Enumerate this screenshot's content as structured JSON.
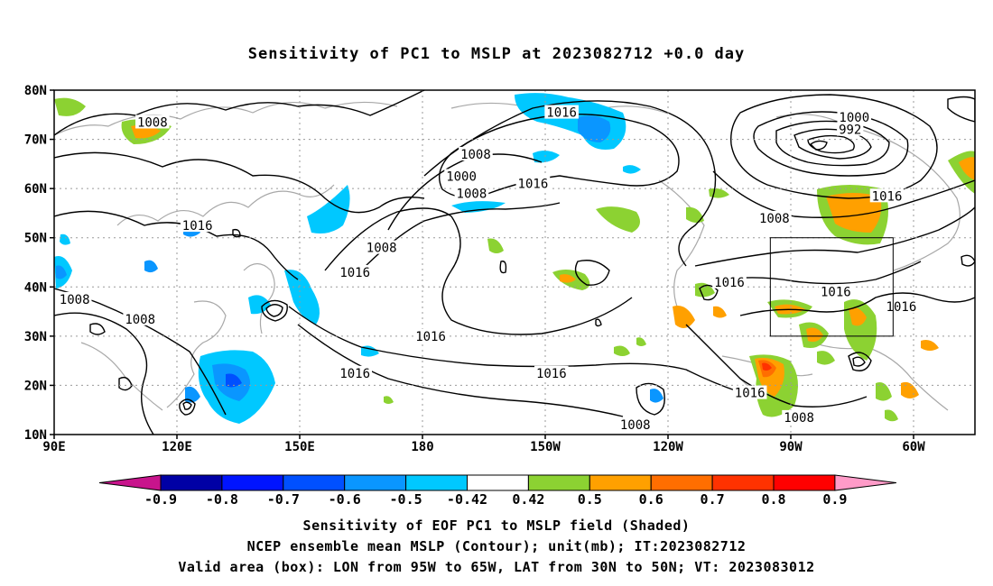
{
  "title": "Sensitivity of PC1 to MSLP at 2023082712 +0.0 day",
  "map": {
    "lat_labels": [
      "80N",
      "70N",
      "60N",
      "50N",
      "40N",
      "30N",
      "20N",
      "10N"
    ],
    "lon_labels": [
      "90E",
      "120E",
      "150E",
      "180",
      "150W",
      "120W",
      "90W",
      "60W"
    ],
    "contour_labels": [
      {
        "text": "1008",
        "lon": 114,
        "lat": 73.5
      },
      {
        "text": "1016",
        "lon": 125,
        "lat": 52.5
      },
      {
        "text": "1008",
        "lon": 95,
        "lat": 37.5
      },
      {
        "text": "1008",
        "lon": 111,
        "lat": 33.5
      },
      {
        "text": "1008",
        "lon": -167,
        "lat": 67
      },
      {
        "text": "1016",
        "lon": -146,
        "lat": 75.5
      },
      {
        "text": "1000",
        "lon": -170.5,
        "lat": 62.5
      },
      {
        "text": "1008",
        "lon": -168,
        "lat": 59
      },
      {
        "text": "1016",
        "lon": -153,
        "lat": 61
      },
      {
        "text": "1008",
        "lon": 170,
        "lat": 48
      },
      {
        "text": "1016",
        "lon": 163.5,
        "lat": 43
      },
      {
        "text": "1016",
        "lon": -178,
        "lat": 30
      },
      {
        "text": "1016",
        "lon": 163.5,
        "lat": 22.5
      },
      {
        "text": "1016",
        "lon": -148.5,
        "lat": 22.5
      },
      {
        "text": "1008",
        "lon": -128,
        "lat": 12
      },
      {
        "text": "1016",
        "lon": -105,
        "lat": 41
      },
      {
        "text": "1016",
        "lon": -100,
        "lat": 18.5
      },
      {
        "text": "1008",
        "lon": -94,
        "lat": 54
      },
      {
        "text": "1000",
        "lon": -74.5,
        "lat": 74.5
      },
      {
        "text": "992",
        "lon": -75.5,
        "lat": 72
      },
      {
        "text": "1016",
        "lon": -66.5,
        "lat": 58.5
      },
      {
        "text": "1016",
        "lon": -79,
        "lat": 39
      },
      {
        "text": "1016",
        "lon": -63,
        "lat": 36
      },
      {
        "text": "1008",
        "lon": -88,
        "lat": 13.5
      }
    ],
    "valid_box": {
      "lon_min": -95,
      "lon_max": -65,
      "lat_min": 30,
      "lat_max": 50
    }
  },
  "colorbar": {
    "labels": [
      "-0.9",
      "-0.8",
      "-0.7",
      "-0.6",
      "-0.5",
      "-0.42",
      "0.42",
      "0.5",
      "0.6",
      "0.7",
      "0.8",
      "0.9"
    ],
    "colors": [
      "#0000a5",
      "#0014ff",
      "#0050ff",
      "#0a96ff",
      "#00c8ff",
      "#ffffff",
      "#8cd232",
      "#ffa000",
      "#ff6e00",
      "#ff3200",
      "#ff0000"
    ],
    "low_end_color": "#c8148c",
    "high_end_color": "#ff9bc8"
  },
  "captions": [
    "Sensitivity of EOF PC1 to MSLP field (Shaded)",
    "NCEP ensemble mean MSLP (Contour); unit(mb); IT:2023082712",
    "Valid area (box): LON from 95W to 65W, LAT from 30N to 50N; VT: 2023083012"
  ]
}
